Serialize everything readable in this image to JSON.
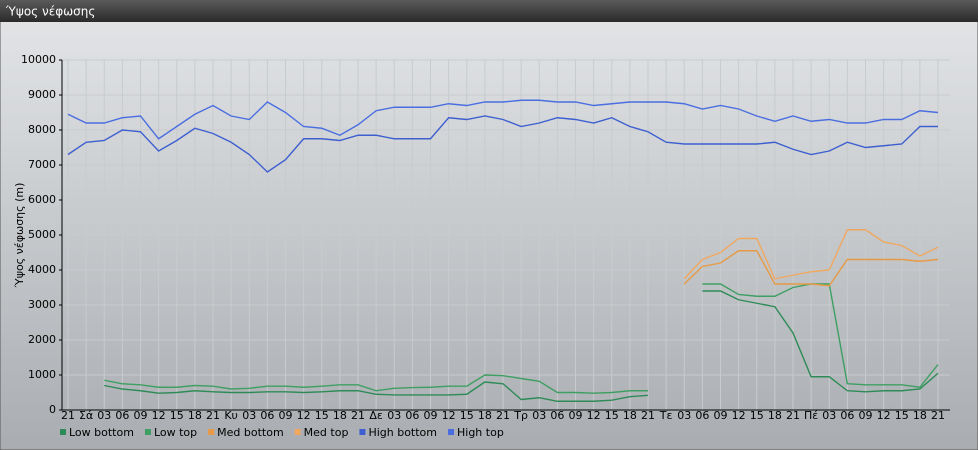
{
  "window_title": "Ύψος νέφωσης",
  "chart_data": {
    "type": "line",
    "y_label": "Ύψος νέφωσης (m)",
    "categories": [
      "21",
      "Σά",
      "03",
      "06",
      "09",
      "12",
      "15",
      "18",
      "21",
      "Κυ",
      "03",
      "06",
      "09",
      "12",
      "15",
      "18",
      "21",
      "Δε",
      "03",
      "06",
      "09",
      "12",
      "15",
      "18",
      "21",
      "Τρ",
      "03",
      "06",
      "09",
      "12",
      "15",
      "18",
      "21",
      "Τε",
      "03",
      "06",
      "09",
      "12",
      "15",
      "18",
      "21",
      "Πέ",
      "03",
      "06",
      "09",
      "12",
      "15",
      "18",
      "21"
    ],
    "ylim": [
      0,
      10000
    ],
    "yticks": [
      0,
      1000,
      2000,
      3000,
      4000,
      5000,
      6000,
      7000,
      8000,
      9000,
      10000
    ],
    "grid": true,
    "legend": "bottom",
    "series": [
      {
        "name": "Low bottom",
        "color": "#2e8b57",
        "values": [
          null,
          null,
          700,
          600,
          550,
          480,
          500,
          550,
          520,
          500,
          500,
          520,
          520,
          500,
          520,
          550,
          550,
          450,
          430,
          430,
          430,
          430,
          450,
          800,
          750,
          300,
          350,
          250,
          250,
          250,
          280,
          380,
          420,
          null,
          null,
          3400,
          3400,
          3150,
          3050,
          2950,
          2200,
          950,
          950,
          550,
          520,
          550,
          550,
          600,
          1050
        ]
      },
      {
        "name": "Low top",
        "color": "#3f9f63",
        "values": [
          null,
          null,
          850,
          750,
          720,
          650,
          650,
          700,
          680,
          600,
          620,
          680,
          680,
          650,
          680,
          720,
          720,
          550,
          620,
          640,
          650,
          680,
          680,
          1000,
          980,
          900,
          820,
          500,
          500,
          480,
          500,
          550,
          550,
          null,
          null,
          3600,
          3600,
          3300,
          3250,
          3250,
          3500,
          3600,
          3600,
          750,
          720,
          720,
          720,
          650,
          1300
        ]
      },
      {
        "name": "Med bottom",
        "color": "#e69a45",
        "values": [
          null,
          null,
          null,
          null,
          null,
          null,
          null,
          null,
          null,
          null,
          null,
          null,
          null,
          null,
          null,
          null,
          null,
          null,
          null,
          null,
          null,
          null,
          null,
          null,
          null,
          null,
          null,
          null,
          null,
          null,
          null,
          null,
          null,
          null,
          3600,
          4100,
          4200,
          4550,
          4550,
          3600,
          3600,
          3600,
          3550,
          4300,
          4300,
          4300,
          4300,
          4250,
          4300
        ]
      },
      {
        "name": "Med top",
        "color": "#f0a860",
        "values": [
          null,
          null,
          null,
          null,
          null,
          null,
          null,
          null,
          null,
          null,
          null,
          null,
          null,
          null,
          null,
          null,
          null,
          null,
          null,
          null,
          null,
          null,
          null,
          null,
          null,
          null,
          null,
          null,
          null,
          null,
          null,
          null,
          null,
          null,
          3750,
          4300,
          4500,
          4900,
          4900,
          3750,
          3850,
          3950,
          4000,
          5150,
          5150,
          4800,
          4700,
          4400,
          4650
        ]
      },
      {
        "name": "High bottom",
        "color": "#3d5fd0",
        "values": [
          7300,
          7650,
          7700,
          8000,
          7950,
          7400,
          7700,
          8050,
          7900,
          7650,
          7300,
          6800,
          7150,
          7750,
          7750,
          7700,
          7850,
          7850,
          7750,
          7750,
          7750,
          8350,
          8300,
          8400,
          8300,
          8100,
          8200,
          8350,
          8300,
          8200,
          8350,
          8100,
          7950,
          7650,
          7600,
          7600,
          7600,
          7600,
          7600,
          7650,
          7450,
          7300,
          7400,
          7650,
          7500,
          7550,
          7600,
          8100,
          8100
        ]
      },
      {
        "name": "High top",
        "color": "#4a6ee0",
        "values": [
          8450,
          8200,
          8200,
          8350,
          8400,
          7750,
          8100,
          8450,
          8700,
          8400,
          8300,
          8800,
          8500,
          8100,
          8050,
          7850,
          8150,
          8550,
          8650,
          8650,
          8650,
          8750,
          8700,
          8800,
          8800,
          8850,
          8850,
          8800,
          8800,
          8700,
          8750,
          8800,
          8800,
          8800,
          8750,
          8600,
          8700,
          8600,
          8400,
          8250,
          8400,
          8250,
          8300,
          8200,
          8200,
          8300,
          8300,
          8550,
          8500
        ]
      }
    ]
  }
}
